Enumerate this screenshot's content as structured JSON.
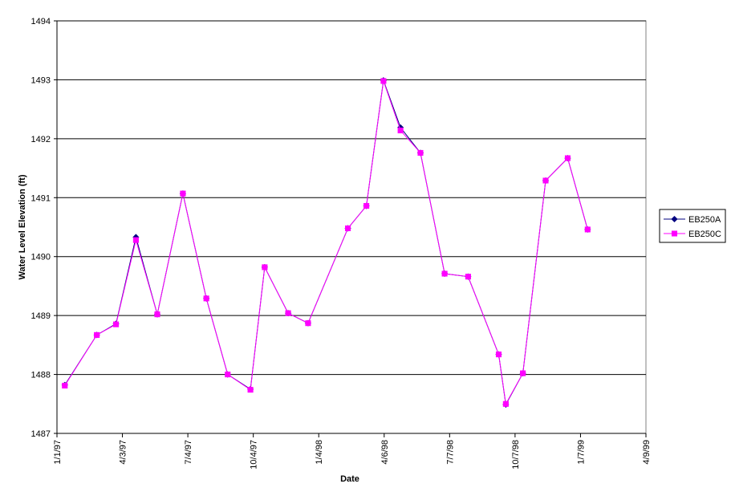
{
  "chart_data": {
    "type": "line",
    "xlabel": "Date",
    "ylabel": "Water Level Elevation (ft)",
    "x_axis": {
      "type": "date",
      "min": "1997-01-01",
      "max": "1999-04-09",
      "ticks": [
        {
          "date": "1997-01-01",
          "label": "1/1/97"
        },
        {
          "date": "1997-04-03",
          "label": "4/3/97"
        },
        {
          "date": "1997-07-04",
          "label": "7/4/97"
        },
        {
          "date": "1997-10-04",
          "label": "10/4/97"
        },
        {
          "date": "1998-01-04",
          "label": "1/4/98"
        },
        {
          "date": "1998-04-06",
          "label": "4/6/98"
        },
        {
          "date": "1998-07-07",
          "label": "7/7/98"
        },
        {
          "date": "1998-10-07",
          "label": "10/7/98"
        },
        {
          "date": "1999-01-07",
          "label": "1/7/99"
        },
        {
          "date": "1999-04-09",
          "label": "4/9/99"
        }
      ]
    },
    "ylim": [
      1487,
      1494
    ],
    "yticks": [
      "1487",
      "1488",
      "1489",
      "1490",
      "1491",
      "1492",
      "1493",
      "1494"
    ],
    "grid": "horizontal major gridlines",
    "legend_position": "right",
    "series": [
      {
        "name": "EB250A",
        "color": "#000080",
        "marker": "diamond",
        "points": [
          {
            "x": "1997-01-12",
            "y": 1487.82
          },
          {
            "x": "1997-02-26",
            "y": 1488.67
          },
          {
            "x": "1997-03-25",
            "y": 1488.86
          },
          {
            "x": "1997-04-22",
            "y": 1490.33
          },
          {
            "x": "1997-05-22",
            "y": 1489.02
          },
          {
            "x": "1997-06-27",
            "y": 1491.07
          },
          {
            "x": "1997-07-30",
            "y": 1489.29
          },
          {
            "x": "1997-08-29",
            "y": 1488.0
          },
          {
            "x": "1997-09-30",
            "y": 1487.75
          },
          {
            "x": "1997-10-20",
            "y": 1489.82
          },
          {
            "x": "1997-11-22",
            "y": 1489.04
          },
          {
            "x": "1997-12-20",
            "y": 1488.87
          },
          {
            "x": "1998-02-14",
            "y": 1490.48
          },
          {
            "x": "1998-03-12",
            "y": 1490.86
          },
          {
            "x": "1998-04-05",
            "y": 1492.99
          },
          {
            "x": "1998-04-29",
            "y": 1492.19
          },
          {
            "x": "1998-05-27",
            "y": 1491.76
          },
          {
            "x": "1998-06-30",
            "y": 1489.71
          },
          {
            "x": "1998-08-02",
            "y": 1489.66
          },
          {
            "x": "1998-09-14",
            "y": 1488.34
          },
          {
            "x": "1998-09-24",
            "y": 1487.49
          },
          {
            "x": "1998-10-18",
            "y": 1488.02
          },
          {
            "x": "1998-11-19",
            "y": 1491.29
          },
          {
            "x": "1998-12-20",
            "y": 1491.67
          },
          {
            "x": "1999-01-17",
            "y": 1490.46
          }
        ]
      },
      {
        "name": "EB250C",
        "color": "#ff00ff",
        "marker": "square",
        "points": [
          {
            "x": "1997-01-12",
            "y": 1487.81
          },
          {
            "x": "1997-02-26",
            "y": 1488.67
          },
          {
            "x": "1997-03-25",
            "y": 1488.85
          },
          {
            "x": "1997-04-22",
            "y": 1490.28
          },
          {
            "x": "1997-05-22",
            "y": 1489.02
          },
          {
            "x": "1997-06-27",
            "y": 1491.07
          },
          {
            "x": "1997-07-30",
            "y": 1489.29
          },
          {
            "x": "1997-08-29",
            "y": 1488.0
          },
          {
            "x": "1997-09-30",
            "y": 1487.74
          },
          {
            "x": "1997-10-20",
            "y": 1489.82
          },
          {
            "x": "1997-11-22",
            "y": 1489.04
          },
          {
            "x": "1997-12-20",
            "y": 1488.87
          },
          {
            "x": "1998-02-14",
            "y": 1490.48
          },
          {
            "x": "1998-03-12",
            "y": 1490.86
          },
          {
            "x": "1998-04-05",
            "y": 1492.98
          },
          {
            "x": "1998-04-29",
            "y": 1492.14
          },
          {
            "x": "1998-05-27",
            "y": 1491.76
          },
          {
            "x": "1998-06-30",
            "y": 1489.71
          },
          {
            "x": "1998-08-02",
            "y": 1489.66
          },
          {
            "x": "1998-09-14",
            "y": 1488.34
          },
          {
            "x": "1998-09-24",
            "y": 1487.5
          },
          {
            "x": "1998-10-18",
            "y": 1488.02
          },
          {
            "x": "1998-11-19",
            "y": 1491.29
          },
          {
            "x": "1998-12-20",
            "y": 1491.67
          },
          {
            "x": "1999-01-17",
            "y": 1490.46
          }
        ]
      }
    ]
  }
}
